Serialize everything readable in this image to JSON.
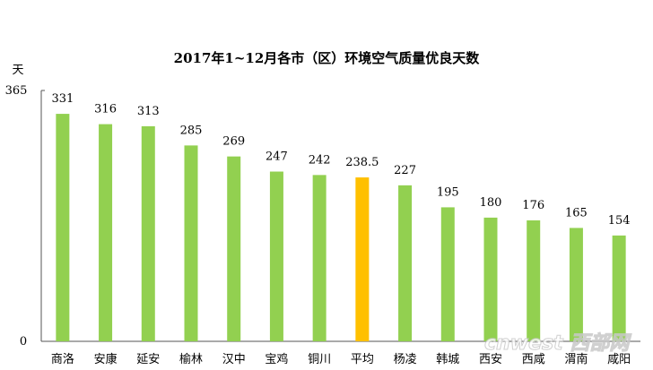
{
  "chart_data": {
    "type": "bar",
    "title": "2017年1~12月各市（区）环境空气质量优良天数",
    "ylabel": "天",
    "ylim": [
      0,
      365
    ],
    "yticks": [
      "0",
      "365"
    ],
    "categories": [
      "商洛",
      "安康",
      "延安",
      "榆林",
      "汉中",
      "宝鸡",
      "铜川",
      "平均",
      "杨凌",
      "韩城",
      "西安",
      "西咸",
      "渭南",
      "咸阳"
    ],
    "values": [
      331,
      316,
      313,
      285,
      269,
      247,
      242,
      238.5,
      227,
      195,
      180,
      176,
      165,
      154
    ],
    "data_labels": [
      "331",
      "316",
      "313",
      "285",
      "269",
      "247",
      "242",
      "238.5",
      "227",
      "195",
      "180",
      "176",
      "165",
      "154"
    ],
    "colors": {
      "bar": "#92d050",
      "highlight": "#ffc000",
      "highlight_category": "平均"
    },
    "grid": false,
    "legend": "none"
  },
  "watermark": "cnwest 西部网"
}
